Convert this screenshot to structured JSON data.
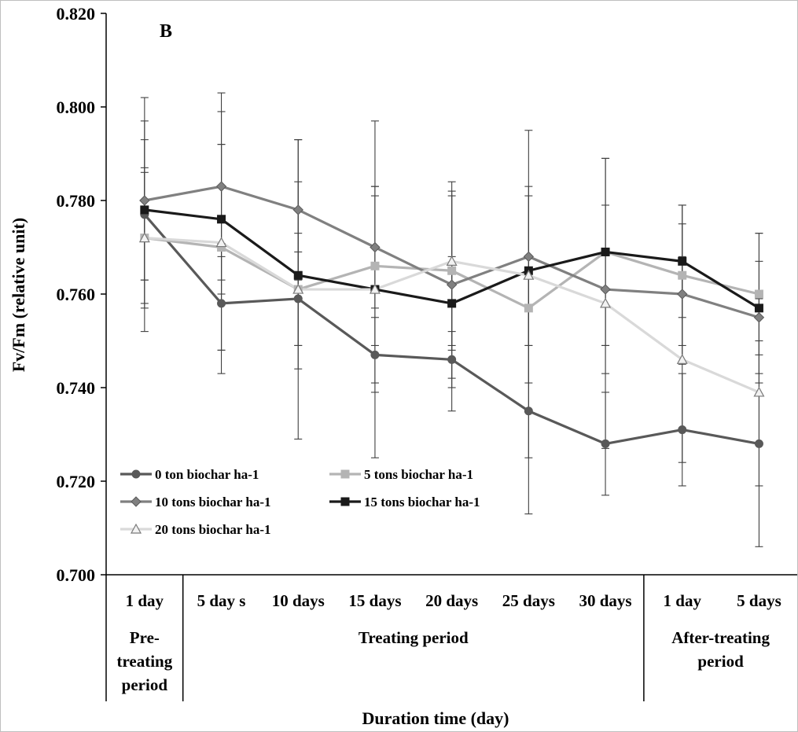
{
  "chart_data": {
    "type": "line",
    "panel_label": "B",
    "xlabel": "Duration time (day)",
    "ylabel": "Fv/Fm (relative unit)",
    "ylim": [
      0.7,
      0.82
    ],
    "yticks": [
      "0.700",
      "0.720",
      "0.740",
      "0.760",
      "0.780",
      "0.800",
      "0.820"
    ],
    "categories": [
      "1 day",
      "5 day s",
      "10 days",
      "15 days",
      "20 days",
      "25 days",
      "30 days",
      "1 day",
      "5 days"
    ],
    "groups": [
      {
        "label": "Pre-treating period",
        "lines": [
          "Pre-",
          "treating",
          "period"
        ],
        "span": [
          0,
          0
        ]
      },
      {
        "label": "Treating period",
        "lines": [
          "Treating period"
        ],
        "span": [
          1,
          6
        ]
      },
      {
        "label": "After-treating period",
        "lines": [
          "After-treating",
          "period"
        ],
        "span": [
          7,
          8
        ]
      }
    ],
    "legend_position": "bottom-left inside plot",
    "series": [
      {
        "name": "0 ton biochar ha-1",
        "color": "#595959",
        "marker": "circle",
        "values": [
          0.777,
          0.758,
          0.759,
          0.747,
          0.746,
          0.735,
          0.728,
          0.731,
          0.728
        ],
        "err_low": [
          0.752,
          0.748,
          0.749,
          0.739,
          0.74,
          0.713,
          0.717,
          0.719,
          0.706
        ],
        "err_high": [
          0.802,
          0.768,
          0.769,
          0.755,
          0.752,
          0.757,
          0.739,
          0.743,
          0.75
        ]
      },
      {
        "name": "5 tons biochar ha-1",
        "color": "#b4b4b4",
        "marker": "square",
        "values": [
          0.772,
          0.77,
          0.761,
          0.766,
          0.765,
          0.757,
          0.769,
          0.764,
          0.76
        ],
        "err_low": [
          0.757,
          0.748,
          0.749,
          0.749,
          0.749,
          0.749,
          0.749,
          0.749,
          0.747
        ],
        "err_high": [
          0.787,
          0.792,
          0.773,
          0.783,
          0.781,
          0.765,
          0.789,
          0.779,
          0.773
        ]
      },
      {
        "name": "10 tons biochar ha-1",
        "color": "#808080",
        "marker": "diamond",
        "values": [
          0.78,
          0.783,
          0.778,
          0.77,
          0.762,
          0.768,
          0.761,
          0.76,
          0.755
        ],
        "err_low": [
          0.763,
          0.763,
          0.763,
          0.757,
          0.742,
          0.741,
          0.743,
          0.745,
          0.743
        ],
        "err_high": [
          0.797,
          0.803,
          0.793,
          0.783,
          0.782,
          0.795,
          0.779,
          0.775,
          0.767
        ]
      },
      {
        "name": "15 tons biochar ha-1",
        "color": "#1a1a1a",
        "marker": "square",
        "values": [
          0.778,
          0.776,
          0.764,
          0.761,
          0.758,
          0.765,
          0.769,
          0.767,
          0.757
        ],
        "err_low": [
          0.763,
          0.76,
          0.744,
          0.741,
          0.748,
          0.749,
          0.749,
          0.755,
          0.741
        ],
        "err_high": [
          0.793,
          0.792,
          0.784,
          0.781,
          0.768,
          0.781,
          0.789,
          0.779,
          0.773
        ]
      },
      {
        "name": "20 tons biochar ha-1",
        "color": "#d9d9d9",
        "marker": "triangle",
        "values": [
          0.772,
          0.771,
          0.761,
          0.761,
          0.767,
          0.764,
          0.758,
          0.746,
          0.739
        ],
        "err_low": [
          0.758,
          0.743,
          0.729,
          0.725,
          0.735,
          0.725,
          0.727,
          0.724,
          0.719
        ],
        "err_high": [
          0.786,
          0.799,
          0.793,
          0.797,
          0.784,
          0.783,
          0.789,
          0.768,
          0.759
        ]
      }
    ]
  }
}
